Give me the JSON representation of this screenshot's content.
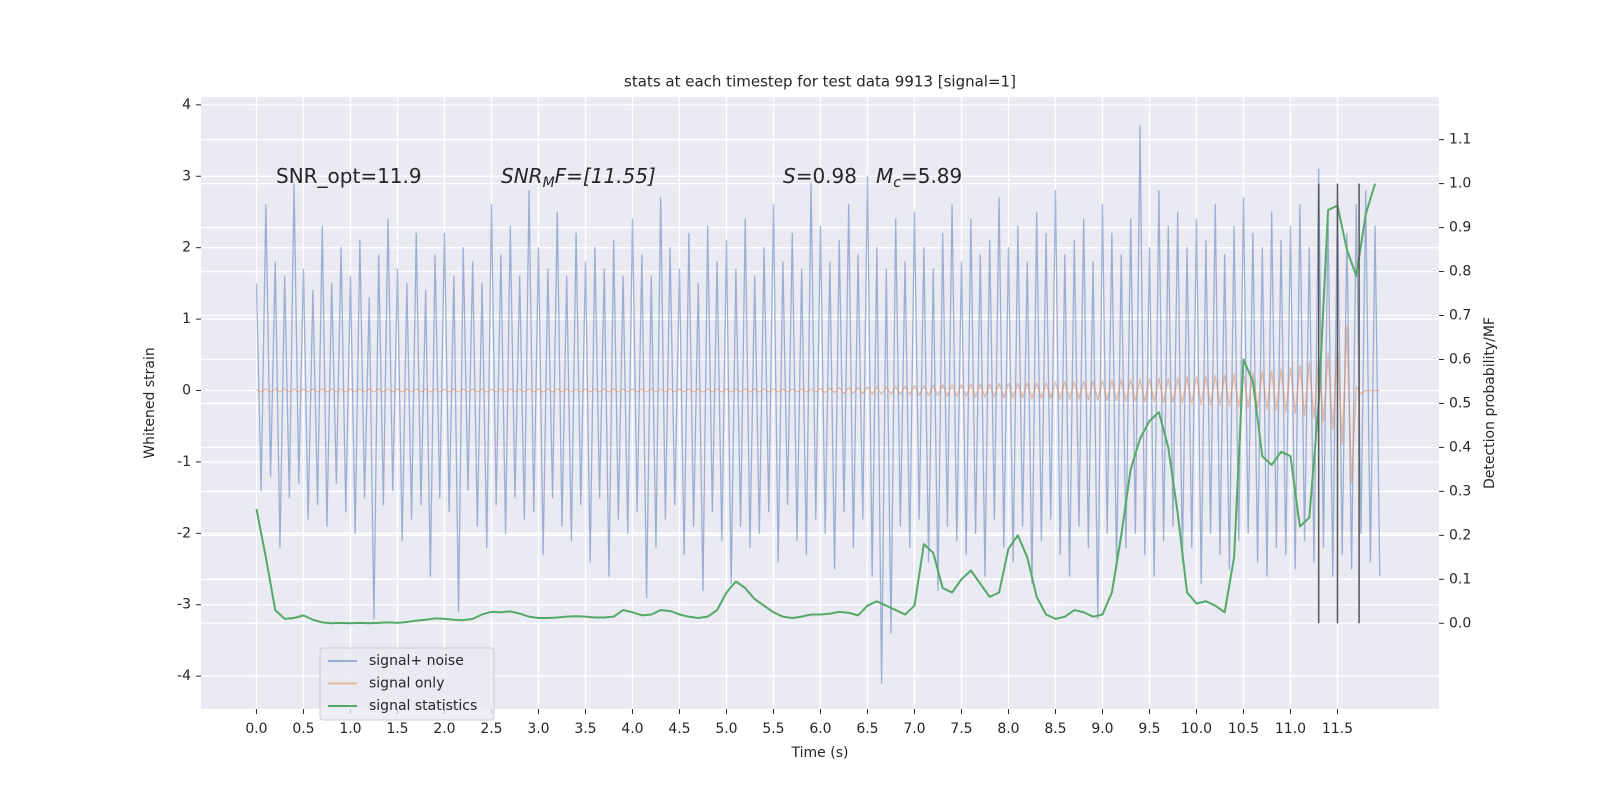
{
  "chart_data": {
    "type": "line",
    "title": "stats at each timestep for test data 9913 [signal=1]",
    "xlabel": "Time (s)",
    "ylabel": "Whitened strain",
    "y2label": "Detection probability/MF",
    "annotations": [
      {
        "text": "SNR_opt=11.9"
      },
      {
        "main": "SNR",
        "sub": "M",
        "rest": "F=[11.55]"
      },
      {
        "main": "S",
        "rest": "=0.98"
      },
      {
        "main": "M",
        "sub": "c",
        "rest": "=5.89"
      }
    ],
    "xlim": [
      -0.59,
      12.58
    ],
    "ylim": [
      -4.46,
      4.11
    ],
    "y2lim": [
      -0.195,
      1.197
    ],
    "xticks": [
      {
        "value": 0,
        "label": "0.0"
      },
      0.5,
      {
        "value": 1,
        "label": "1.0"
      },
      1.5,
      {
        "value": 2,
        "label": "2.0"
      },
      2.5,
      {
        "value": 3,
        "label": "3.0"
      },
      3.5,
      {
        "value": 4,
        "label": "4.0"
      },
      4.5,
      {
        "value": 5,
        "label": "5.0"
      },
      5.5,
      {
        "value": 6,
        "label": "6.0"
      },
      6.5,
      {
        "value": 7,
        "label": "7.0"
      },
      7.5,
      {
        "value": 8,
        "label": "8.0"
      },
      8.5,
      {
        "value": 9,
        "label": "9.0"
      },
      9.5,
      {
        "value": 10,
        "label": "10.0"
      },
      10.5,
      {
        "value": 11,
        "label": "11.0"
      },
      11.5
    ],
    "yticks": [
      -4,
      -3,
      -2,
      -1,
      0,
      1,
      2,
      3,
      4
    ],
    "y2ticks": [
      {
        "value": 0,
        "label": "0.0"
      },
      0.1,
      0.2,
      0.3,
      0.4,
      0.5,
      0.6,
      0.7,
      0.8,
      0.9,
      {
        "value": 1,
        "label": "1.0"
      },
      1.1
    ],
    "grid": true,
    "legend": "lower left",
    "x": [
      0,
      0.05,
      0.1,
      0.15,
      0.2,
      0.25,
      0.3,
      0.35,
      0.4,
      0.45,
      0.5,
      0.55,
      0.6,
      0.65,
      0.7,
      0.75,
      0.8,
      0.85,
      0.9,
      0.95,
      1,
      1.05,
      1.1,
      1.15,
      1.2,
      1.25,
      1.3,
      1.35,
      1.4,
      1.45,
      1.5,
      1.55,
      1.6,
      1.65,
      1.7,
      1.75,
      1.8,
      1.85,
      1.9,
      1.95,
      2,
      2.05,
      2.1,
      2.15,
      2.2,
      2.25,
      2.3,
      2.35,
      2.4,
      2.45,
      2.5,
      2.55,
      2.6,
      2.65,
      2.7,
      2.75,
      2.8,
      2.85,
      2.9,
      2.95,
      3,
      3.05,
      3.1,
      3.15,
      3.2,
      3.25,
      3.3,
      3.35,
      3.4,
      3.45,
      3.5,
      3.55,
      3.6,
      3.65,
      3.7,
      3.75,
      3.8,
      3.85,
      3.9,
      3.95,
      4,
      4.05,
      4.1,
      4.15,
      4.2,
      4.25,
      4.3,
      4.35,
      4.4,
      4.45,
      4.5,
      4.55,
      4.6,
      4.65,
      4.7,
      4.75,
      4.8,
      4.85,
      4.9,
      4.95,
      5,
      5.05,
      5.1,
      5.15,
      5.2,
      5.25,
      5.3,
      5.35,
      5.4,
      5.45,
      5.5,
      5.55,
      5.6,
      5.65,
      5.7,
      5.75,
      5.8,
      5.85,
      5.9,
      5.95,
      6,
      6.05,
      6.1,
      6.15,
      6.2,
      6.25,
      6.3,
      6.35,
      6.4,
      6.45,
      6.5,
      6.55,
      6.6,
      6.65,
      6.7,
      6.75,
      6.8,
      6.85,
      6.9,
      6.95,
      7,
      7.05,
      7.1,
      7.15,
      7.2,
      7.25,
      7.3,
      7.35,
      7.4,
      7.45,
      7.5,
      7.55,
      7.6,
      7.65,
      7.7,
      7.75,
      7.8,
      7.85,
      7.9,
      7.95,
      8,
      8.05,
      8.1,
      8.15,
      8.2,
      8.25,
      8.3,
      8.35,
      8.4,
      8.45,
      8.5,
      8.55,
      8.6,
      8.65,
      8.7,
      8.75,
      8.8,
      8.85,
      8.9,
      8.95,
      9,
      9.05,
      9.1,
      9.15,
      9.2,
      9.25,
      9.3,
      9.35,
      9.4,
      9.45,
      9.5,
      9.55,
      9.6,
      9.65,
      9.7,
      9.75,
      9.8,
      9.85,
      9.9,
      9.95,
      10,
      10.05,
      10.1,
      10.15,
      10.2,
      10.25,
      10.3,
      10.35,
      10.4,
      10.45,
      10.5,
      10.55,
      10.6,
      10.65,
      10.7,
      10.75,
      10.8,
      10.85,
      10.9,
      10.95,
      11,
      11.05,
      11.1,
      11.15,
      11.2,
      11.25,
      11.3,
      11.35,
      11.4,
      11.45,
      11.5,
      11.55,
      11.6,
      11.65,
      11.7,
      11.75,
      11.8,
      11.85,
      11.9,
      11.95
    ],
    "series": [
      {
        "name": "signal+ noise",
        "color": "#4c72b0",
        "values": [
          1.5,
          -1.4,
          2.6,
          -1.2,
          1.8,
          -2.2,
          1.6,
          -1.5,
          2.9,
          -1.3,
          1.7,
          -1.8,
          1.4,
          -1.6,
          2.3,
          -1.9,
          1.5,
          -1.3,
          2.0,
          -1.7,
          1.6,
          -2.0,
          2.1,
          -1.5,
          1.3,
          -3.2,
          1.9,
          -1.6,
          2.4,
          -1.4,
          1.7,
          -2.1,
          1.5,
          -1.8,
          2.2,
          -1.6,
          1.4,
          -2.6,
          1.9,
          -1.5,
          2.2,
          -1.7,
          1.6,
          -3.1,
          2.0,
          -1.4,
          1.8,
          -1.9,
          1.5,
          -2.2,
          2.6,
          -1.6,
          1.9,
          -2.0,
          2.3,
          -1.5,
          1.6,
          -1.8,
          2.8,
          -1.7,
          2.0,
          -2.3,
          1.7,
          -1.5,
          2.5,
          -1.9,
          1.6,
          -2.1,
          2.2,
          -1.6,
          1.8,
          -2.4,
          2.0,
          -1.5,
          1.7,
          -2.6,
          2.1,
          -1.8,
          1.6,
          -2.0,
          2.4,
          -1.7,
          1.9,
          -2.9,
          1.6,
          -2.2,
          2.7,
          -1.8,
          2.0,
          -1.6,
          1.7,
          -2.3,
          2.2,
          -1.9,
          1.5,
          -2.8,
          2.3,
          -1.7,
          1.8,
          -2.1,
          2.1,
          -2.7,
          1.7,
          -1.9,
          2.4,
          -2.2,
          1.6,
          -2.0,
          2.0,
          -1.7,
          2.6,
          -2.4,
          1.8,
          -1.6,
          2.2,
          -2.1,
          1.7,
          -2.3,
          2.9,
          -1.8,
          2.3,
          -2.0,
          1.8,
          -2.5,
          2.1,
          -1.7,
          2.6,
          -2.2,
          1.9,
          -1.8,
          3.0,
          -2.6,
          2.0,
          -4.1,
          1.7,
          -3.4,
          2.4,
          -1.9,
          1.8,
          -2.2,
          2.5,
          -1.8,
          2.0,
          -2.4,
          1.7,
          -2.8,
          2.2,
          -1.9,
          2.6,
          -2.1,
          1.8,
          -2.3,
          2.4,
          -2.0,
          1.9,
          -2.6,
          2.1,
          -1.8,
          2.7,
          -2.2,
          2.0,
          -2.4,
          2.3,
          -1.9,
          1.8,
          -2.7,
          2.5,
          -2.1,
          2.2,
          -1.8,
          2.8,
          -2.3,
          1.9,
          -2.6,
          2.1,
          -1.9,
          2.4,
          -2.2,
          1.8,
          -3.2,
          2.6,
          -2.0,
          2.2,
          -2.5,
          1.9,
          -2.2,
          2.4,
          -2.0,
          3.7,
          -2.3,
          2.0,
          -2.6,
          2.8,
          -2.1,
          2.3,
          -1.9,
          2.5,
          -2.4,
          2.0,
          -2.2,
          2.4,
          -2.7,
          2.1,
          -2.0,
          2.6,
          -2.3,
          1.9,
          -2.5,
          2.3,
          -2.1,
          2.7,
          -2.0,
          2.2,
          -2.4,
          2.0,
          -2.6,
          2.5,
          -2.2,
          2.1,
          -2.3,
          2.3,
          -2.5,
          2.6,
          -2.1,
          2.0,
          -2.4,
          3.1,
          -2.2,
          2.4,
          -2.6,
          2.7,
          -2.3,
          2.2,
          -2.5,
          2.6,
          -2.0,
          2.8,
          -2.4,
          2.3,
          -2.6
        ]
      },
      {
        "name": "signal only",
        "color": "#dd8452",
        "values": [
          0.02,
          -0.02,
          0.02,
          -0.02,
          0.02,
          -0.02,
          0.02,
          -0.02,
          0.02,
          -0.02,
          0.02,
          -0.02,
          0.02,
          -0.02,
          0.02,
          -0.02,
          0.02,
          -0.02,
          0.02,
          -0.02,
          0.02,
          -0.02,
          0.02,
          -0.02,
          0.02,
          -0.02,
          0.02,
          -0.02,
          0.02,
          -0.02,
          0.02,
          -0.02,
          0.02,
          -0.02,
          0.02,
          -0.02,
          0.02,
          -0.02,
          0.02,
          -0.02,
          0.02,
          -0.02,
          0.02,
          -0.02,
          0.02,
          -0.02,
          0.02,
          -0.02,
          0.02,
          -0.02,
          0.02,
          -0.02,
          0.02,
          -0.02,
          0.02,
          -0.02,
          0.02,
          -0.02,
          0.02,
          -0.02,
          0.02,
          -0.02,
          0.02,
          -0.02,
          0.02,
          -0.02,
          0.02,
          -0.02,
          0.02,
          -0.02,
          0.02,
          -0.02,
          0.02,
          -0.02,
          0.02,
          -0.02,
          0.02,
          -0.02,
          0.02,
          -0.02,
          0.02,
          -0.02,
          0.02,
          -0.02,
          0.02,
          -0.02,
          0.02,
          -0.02,
          0.02,
          -0.02,
          0.02,
          -0.02,
          0.02,
          -0.02,
          0.02,
          -0.02,
          0.02,
          -0.02,
          0.02,
          -0.02,
          0.02,
          -0.02,
          0.02,
          -0.02,
          0.02,
          -0.02,
          0.02,
          -0.02,
          0.02,
          -0.02,
          0.02,
          -0.02,
          0.02,
          -0.02,
          0.02,
          -0.02,
          0.02,
          -0.02,
          0.02,
          -0.02,
          0.03,
          -0.03,
          0.03,
          -0.03,
          0.04,
          -0.04,
          0.04,
          -0.04,
          0.04,
          -0.04,
          0.05,
          -0.05,
          0.05,
          -0.05,
          0.05,
          -0.05,
          0.06,
          -0.06,
          0.06,
          -0.06,
          0.07,
          -0.07,
          0.07,
          -0.07,
          0.07,
          -0.07,
          0.08,
          -0.08,
          0.08,
          -0.08,
          0.08,
          -0.08,
          0.09,
          -0.09,
          0.09,
          -0.09,
          0.09,
          -0.09,
          0.1,
          -0.1,
          0.1,
          -0.1,
          0.1,
          -0.1,
          0.11,
          -0.11,
          0.11,
          -0.11,
          0.11,
          -0.11,
          0.12,
          -0.12,
          0.12,
          -0.12,
          0.12,
          -0.12,
          0.13,
          -0.13,
          0.13,
          -0.13,
          0.14,
          -0.14,
          0.14,
          -0.14,
          0.15,
          -0.15,
          0.15,
          -0.15,
          0.16,
          -0.16,
          0.16,
          -0.16,
          0.17,
          -0.17,
          0.17,
          -0.17,
          0.18,
          -0.18,
          0.19,
          -0.19,
          0.2,
          -0.2,
          0.2,
          -0.2,
          0.21,
          -0.21,
          0.22,
          -0.22,
          0.23,
          -0.23,
          0.24,
          -0.24,
          0.25,
          -0.25,
          0.27,
          -0.27,
          0.28,
          -0.28,
          0.3,
          -0.3,
          0.32,
          -0.32,
          0.35,
          -0.35,
          0.39,
          -0.39,
          0.44,
          -0.44,
          0.52,
          -0.55,
          0.62,
          -0.75,
          0.9,
          -1.3,
          0.05,
          -0.05,
          0,
          0,
          0,
          0
        ]
      },
      {
        "name": "signal statistics",
        "color": "#55a868",
        "axis": "y2",
        "x": [
          0,
          0.1,
          0.2,
          0.3,
          0.4,
          0.5,
          0.6,
          0.7,
          0.8,
          0.9,
          1,
          1.1,
          1.2,
          1.3,
          1.4,
          1.5,
          1.6,
          1.7,
          1.8,
          1.9,
          2,
          2.1,
          2.2,
          2.3,
          2.4,
          2.5,
          2.6,
          2.7,
          2.8,
          2.9,
          3,
          3.1,
          3.2,
          3.3,
          3.4,
          3.5,
          3.6,
          3.7,
          3.8,
          3.9,
          4,
          4.1,
          4.2,
          4.3,
          4.4,
          4.5,
          4.6,
          4.7,
          4.8,
          4.9,
          5,
          5.1,
          5.2,
          5.3,
          5.4,
          5.5,
          5.6,
          5.7,
          5.8,
          5.9,
          6,
          6.1,
          6.2,
          6.3,
          6.4,
          6.5,
          6.6,
          6.7,
          6.8,
          6.9,
          7,
          7.1,
          7.2,
          7.3,
          7.4,
          7.5,
          7.6,
          7.7,
          7.8,
          7.9,
          8,
          8.1,
          8.2,
          8.3,
          8.4,
          8.5,
          8.6,
          8.7,
          8.8,
          8.9,
          9,
          9.1,
          9.2,
          9.3,
          9.4,
          9.5,
          9.6,
          9.7,
          9.8,
          9.9,
          10,
          10.1,
          10.2,
          10.3,
          10.4,
          10.5,
          10.6,
          10.7,
          10.8,
          10.9,
          11,
          11.1,
          11.2,
          11.3,
          11.4,
          11.5,
          11.6,
          11.7,
          11.8,
          11.9
        ],
        "values": [
          0.26,
          0.15,
          0.03,
          0.01,
          0.012,
          0.018,
          0.008,
          0.002,
          0.0,
          0.001,
          0.0,
          0.001,
          0.0,
          0.001,
          0.002,
          0.001,
          0.003,
          0.006,
          0.008,
          0.011,
          0.01,
          0.008,
          0.007,
          0.01,
          0.02,
          0.026,
          0.025,
          0.027,
          0.022,
          0.015,
          0.012,
          0.012,
          0.013,
          0.015,
          0.016,
          0.015,
          0.013,
          0.013,
          0.015,
          0.03,
          0.025,
          0.018,
          0.02,
          0.03,
          0.028,
          0.02,
          0.015,
          0.012,
          0.015,
          0.03,
          0.07,
          0.095,
          0.08,
          0.055,
          0.04,
          0.025,
          0.015,
          0.012,
          0.015,
          0.02,
          0.02,
          0.022,
          0.026,
          0.024,
          0.018,
          0.04,
          0.05,
          0.04,
          0.03,
          0.02,
          0.04,
          0.18,
          0.16,
          0.08,
          0.07,
          0.1,
          0.12,
          0.09,
          0.06,
          0.07,
          0.17,
          0.2,
          0.15,
          0.06,
          0.02,
          0.01,
          0.015,
          0.03,
          0.025,
          0.015,
          0.02,
          0.07,
          0.2,
          0.35,
          0.42,
          0.46,
          0.48,
          0.4,
          0.25,
          0.07,
          0.045,
          0.05,
          0.04,
          0.025,
          0.15,
          0.6,
          0.55,
          0.38,
          0.36,
          0.39,
          0.38,
          0.22,
          0.24,
          0.5,
          0.94,
          0.95,
          0.85,
          0.79,
          0.93,
          1.0
        ]
      }
    ],
    "vlines": {
      "color": "#555555",
      "x": [
        11.3,
        11.5,
        11.73
      ],
      "y2": [
        0,
        1
      ]
    }
  }
}
